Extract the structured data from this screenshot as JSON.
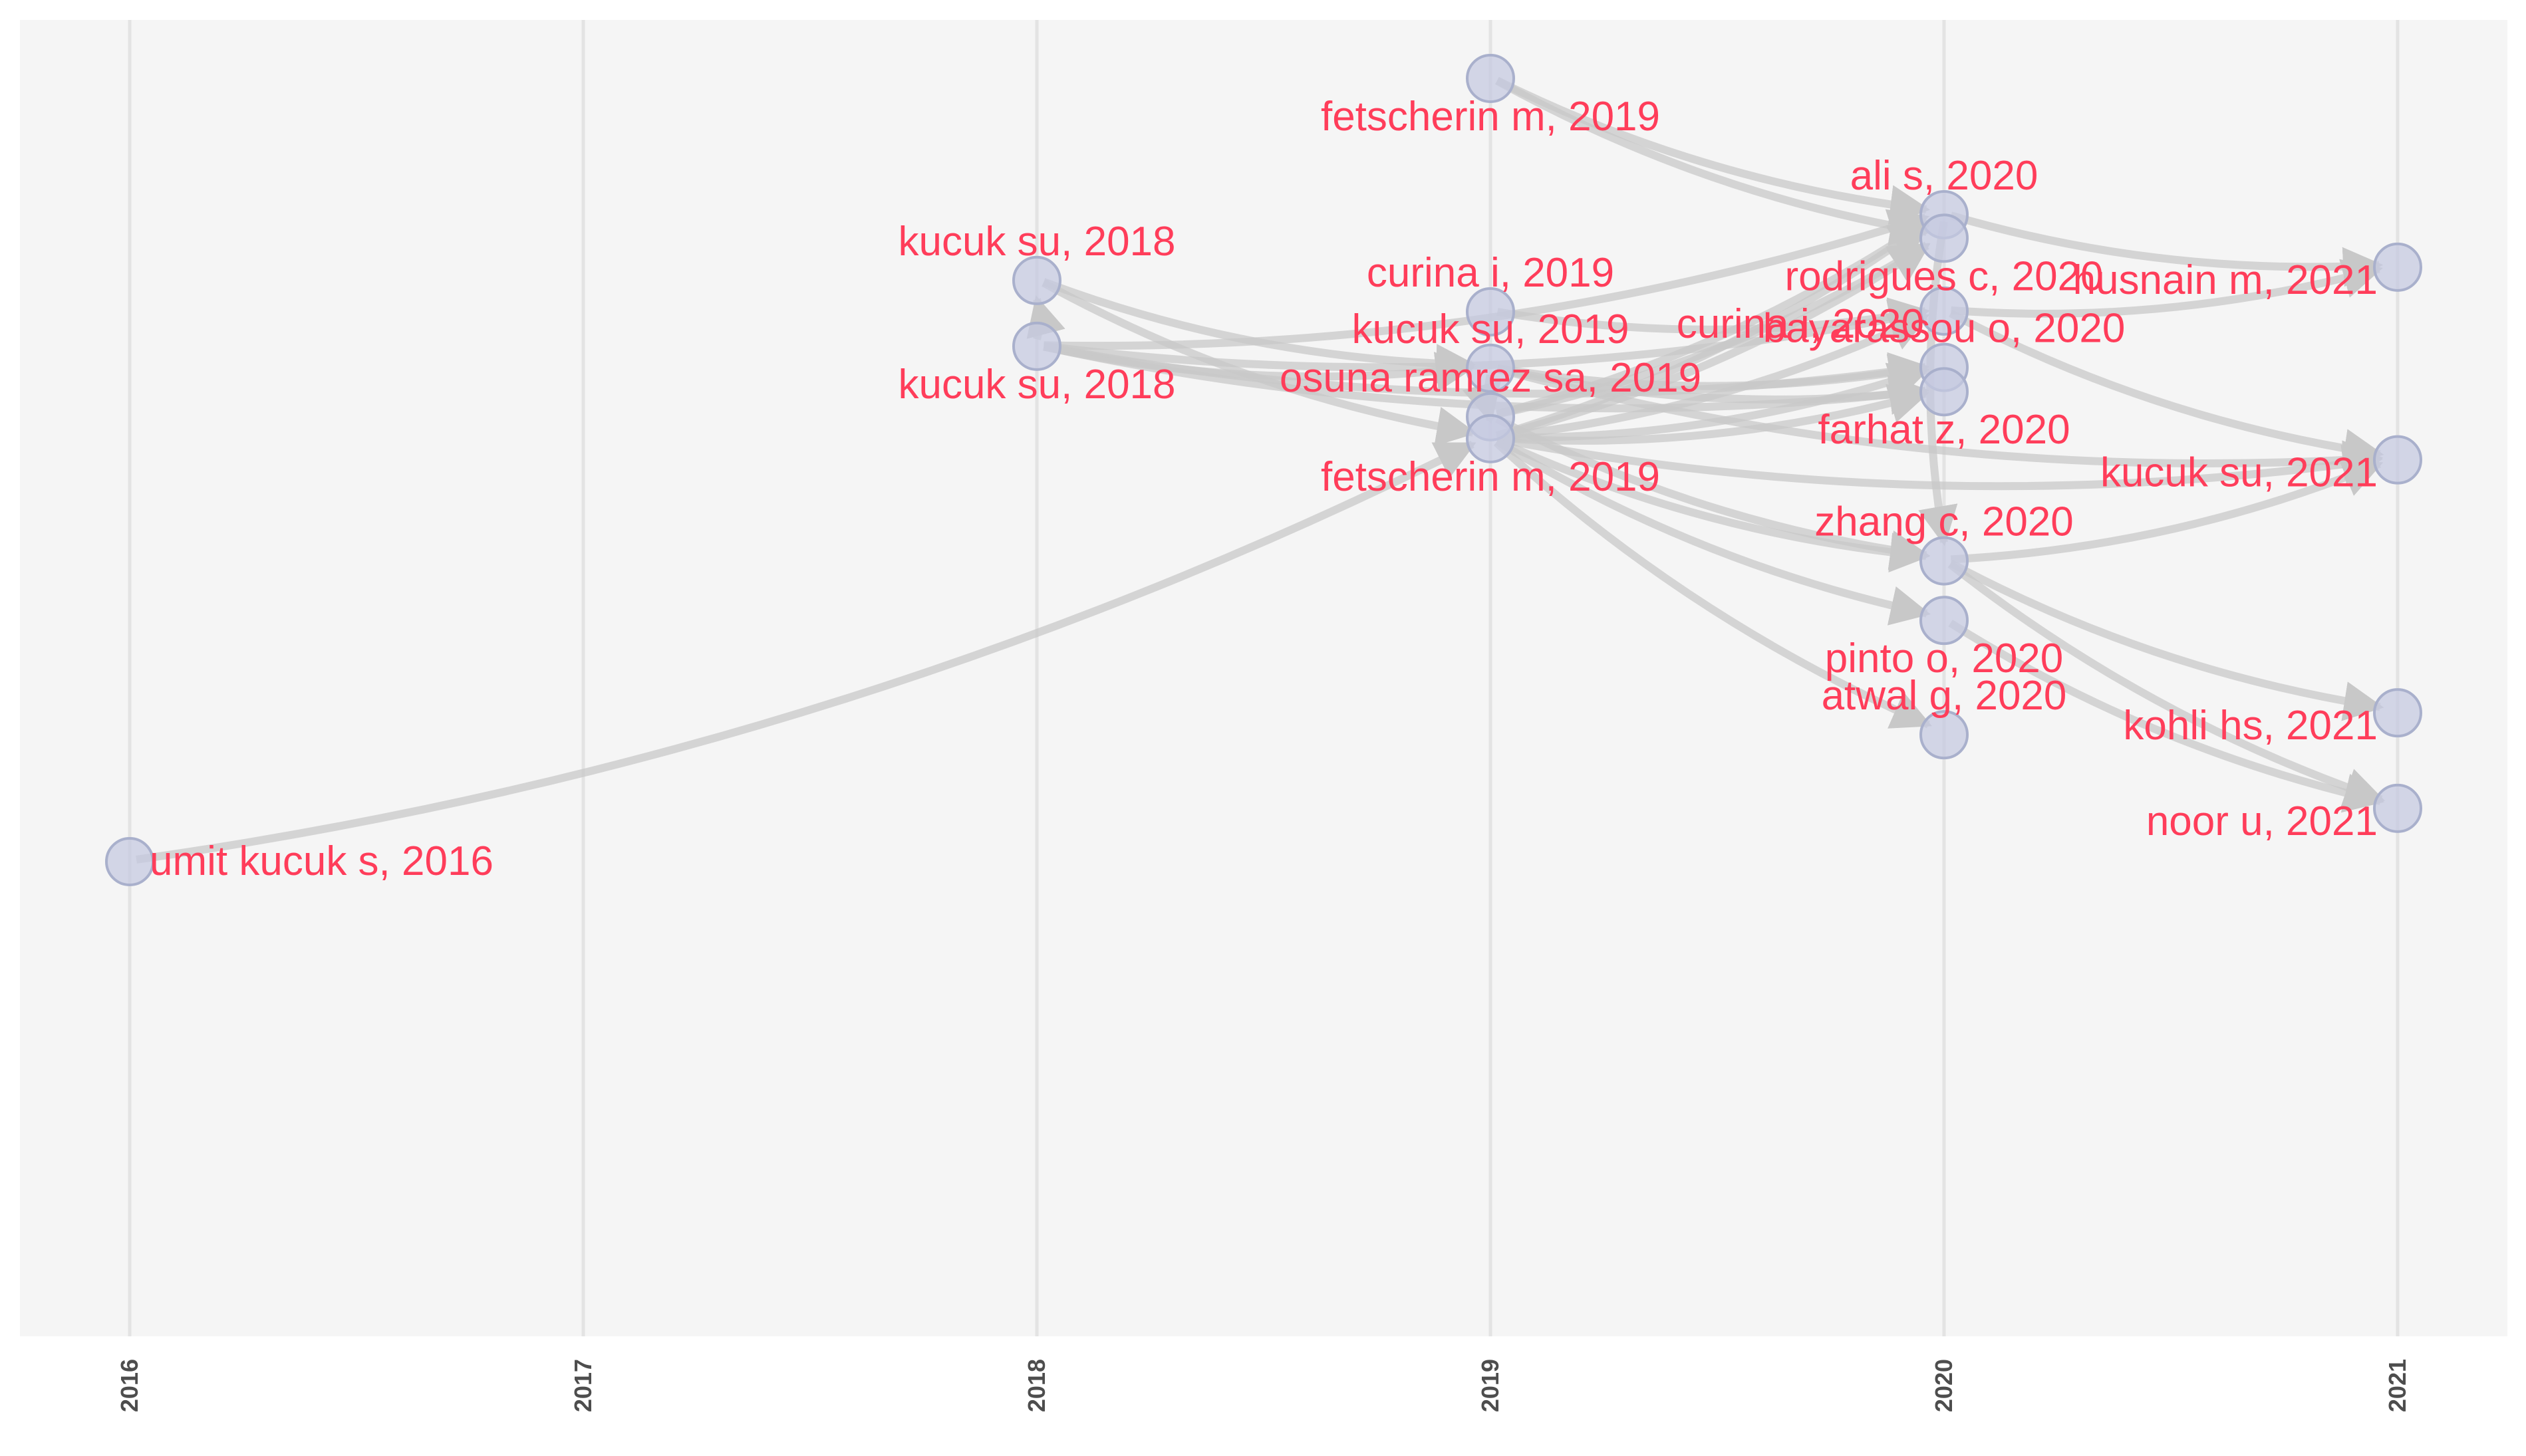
{
  "chart_data": {
    "type": "diagram",
    "description_free": true,
    "x_axis": {
      "ticks": [
        "2016",
        "2017",
        "2018",
        "2019",
        "2020",
        "2021"
      ],
      "range": [
        2016,
        2021
      ]
    },
    "colors": {
      "panel_background": "#f5f5f5",
      "gridline": "#e3e3e3",
      "edge": "#c8c8c8",
      "node_fill": "#c5cae0",
      "node_stroke": "#a9b0cc",
      "label": "#ff3d5a"
    },
    "nodes": [
      {
        "id": "umit2016",
        "label": "umit kucuk s, 2016",
        "year": 2016,
        "pos": 0.0,
        "label_side": "right"
      },
      {
        "id": "kucuk2018a",
        "label": "kucuk su, 2018",
        "year": 2018,
        "pos": 0.742,
        "label_side": "above"
      },
      {
        "id": "kucuk2018b",
        "label": "kucuk su, 2018",
        "year": 2018,
        "pos": 0.658,
        "label_side": "below"
      },
      {
        "id": "fets2019a",
        "label": "fetscherin m, 2019",
        "year": 2019,
        "pos": 1.0,
        "label_side": "below"
      },
      {
        "id": "curina2019",
        "label": "curina i, 2019",
        "year": 2019,
        "pos": 0.702,
        "label_side": "above"
      },
      {
        "id": "kucuk2019",
        "label": "kucuk su, 2019",
        "year": 2019,
        "pos": 0.63,
        "label_side": "above"
      },
      {
        "id": "osuna2019",
        "label": "osuna ramrez sa, 2019",
        "year": 2019,
        "pos": 0.568,
        "label_side": "above"
      },
      {
        "id": "fets2019b",
        "label": "fetscherin m, 2019",
        "year": 2019,
        "pos": 0.54,
        "label_side": "below"
      },
      {
        "id": "ali2020",
        "label": "ali s, 2020",
        "year": 2020,
        "pos": 0.826,
        "label_side": "above"
      },
      {
        "id": "rodr2020",
        "label": "rodrigues c, 2020",
        "year": 2020,
        "pos": 0.796,
        "label_side": "below"
      },
      {
        "id": "curina2020",
        "label": "curina i, 2020",
        "year": 2020,
        "pos": 0.703,
        "label_side": "left"
      },
      {
        "id": "baya2020",
        "label": "bayarassou o, 2020",
        "year": 2020,
        "pos": 0.631,
        "label_side": "above"
      },
      {
        "id": "farhat2020",
        "label": "farhat z, 2020",
        "year": 2020,
        "pos": 0.6,
        "label_side": "below"
      },
      {
        "id": "zhang2020",
        "label": "zhang c, 2020",
        "year": 2020,
        "pos": 0.384,
        "label_side": "above"
      },
      {
        "id": "pinto2020",
        "label": "pinto o, 2020",
        "year": 2020,
        "pos": 0.308,
        "label_side": "below"
      },
      {
        "id": "atwal2020",
        "label": "atwal g, 2020",
        "year": 2020,
        "pos": 0.162,
        "label_side": "above"
      },
      {
        "id": "husn2021",
        "label": "husnain m, 2021",
        "year": 2021,
        "pos": 0.759,
        "label_side": "left"
      },
      {
        "id": "kucuk2021",
        "label": "kucuk su, 2021",
        "year": 2021,
        "pos": 0.513,
        "label_side": "left"
      },
      {
        "id": "kohli2021",
        "label": "kohli hs, 2021",
        "year": 2021,
        "pos": 0.19,
        "label_side": "left"
      },
      {
        "id": "noor2021",
        "label": "noor u, 2021",
        "year": 2021,
        "pos": 0.068,
        "label_side": "left"
      }
    ],
    "edges": [
      [
        "umit2016",
        "fets2019b"
      ],
      [
        "kucuk2018b",
        "kucuk2018a"
      ],
      [
        "kucuk2018a",
        "kucuk2019"
      ],
      [
        "kucuk2018a",
        "fets2019b"
      ],
      [
        "kucuk2018b",
        "kucuk2019"
      ],
      [
        "kucuk2018b",
        "ali2020"
      ],
      [
        "kucuk2018b",
        "baya2020"
      ],
      [
        "kucuk2018b",
        "farhat2020"
      ],
      [
        "kucuk2018b",
        "curina2020"
      ],
      [
        "fets2019a",
        "ali2020"
      ],
      [
        "fets2019a",
        "rodr2020"
      ],
      [
        "curina2019",
        "curina2020"
      ],
      [
        "kucuk2019",
        "baya2020"
      ],
      [
        "kucuk2019",
        "farhat2020"
      ],
      [
        "kucuk2019",
        "kucuk2021"
      ],
      [
        "kucuk2019",
        "fets2019b"
      ],
      [
        "osuna2019",
        "ali2020"
      ],
      [
        "osuna2019",
        "rodr2020"
      ],
      [
        "osuna2019",
        "zhang2020"
      ],
      [
        "fets2019b",
        "ali2020"
      ],
      [
        "fets2019b",
        "rodr2020"
      ],
      [
        "fets2019b",
        "curina2020"
      ],
      [
        "fets2019b",
        "baya2020"
      ],
      [
        "fets2019b",
        "farhat2020"
      ],
      [
        "fets2019b",
        "zhang2020"
      ],
      [
        "fets2019b",
        "pinto2020"
      ],
      [
        "fets2019b",
        "atwal2020"
      ],
      [
        "fets2019b",
        "kucuk2021"
      ],
      [
        "ali2020",
        "husn2021"
      ],
      [
        "ali2020",
        "zhang2020"
      ],
      [
        "curina2020",
        "husn2021"
      ],
      [
        "curina2020",
        "kucuk2021"
      ],
      [
        "zhang2020",
        "kucuk2021"
      ],
      [
        "zhang2020",
        "kohli2021"
      ],
      [
        "zhang2020",
        "noor2021"
      ],
      [
        "pinto2020",
        "noor2021"
      ]
    ]
  }
}
